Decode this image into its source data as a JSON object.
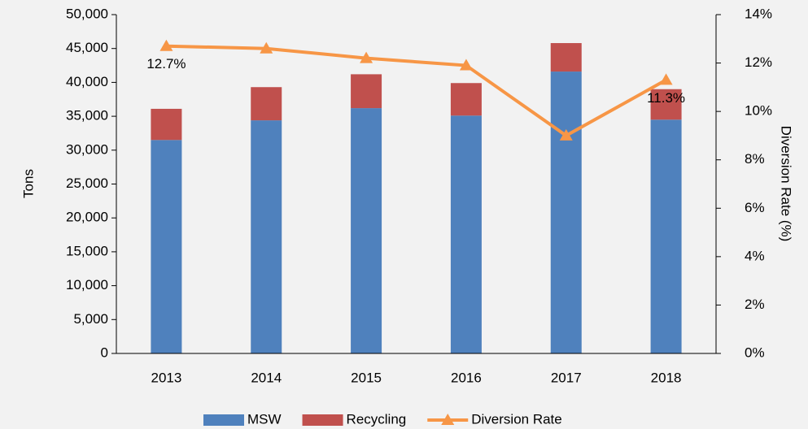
{
  "chart_data": {
    "type": "bar",
    "categories": [
      "2013",
      "2014",
      "2015",
      "2016",
      "2017",
      "2018"
    ],
    "series": [
      {
        "name": "MSW",
        "color": "#4f81bd",
        "values": [
          31500,
          34400,
          36200,
          35100,
          41600,
          34500
        ]
      },
      {
        "name": "Recycling",
        "color": "#c0504d",
        "values": [
          4600,
          4900,
          5000,
          4800,
          4200,
          4500
        ]
      },
      {
        "name": "Diversion Rate",
        "color": "#f79646",
        "type": "line",
        "axis": "y2",
        "values": [
          12.7,
          12.6,
          12.2,
          11.9,
          9.0,
          11.3
        ],
        "value_labels": [
          "12.7%",
          null,
          null,
          null,
          null,
          "11.3%"
        ]
      }
    ],
    "stacked": true,
    "ylabel": "Tons",
    "y2label": "Diversion Rate (%)",
    "ylim": [
      0,
      50000
    ],
    "yticks": [
      0,
      {
        "value": 5000,
        "label": "5,000"
      },
      {
        "value": 10000,
        "label": "10,000"
      },
      {
        "value": 15000,
        "label": "15,000"
      },
      {
        "value": 20000,
        "label": "20,000"
      },
      {
        "value": 25000,
        "label": "25,000"
      },
      {
        "value": 30000,
        "label": "30,000"
      },
      {
        "value": 35000,
        "label": "35,000"
      },
      {
        "value": 40000,
        "label": "40,000"
      },
      {
        "value": 45000,
        "label": "45,000"
      },
      {
        "value": 50000,
        "label": "50,000"
      }
    ],
    "y2lim": [
      0,
      14
    ],
    "y2ticks": [
      {
        "value": 0,
        "label": "0%"
      },
      {
        "value": 2,
        "label": "2%"
      },
      {
        "value": 4,
        "label": "4%"
      },
      {
        "value": 6,
        "label": "6%"
      },
      {
        "value": 8,
        "label": "8%"
      },
      {
        "value": 10,
        "label": "10%"
      },
      {
        "value": 12,
        "label": "12%"
      },
      {
        "value": 14,
        "label": "14%"
      }
    ],
    "legend": "bottom"
  }
}
